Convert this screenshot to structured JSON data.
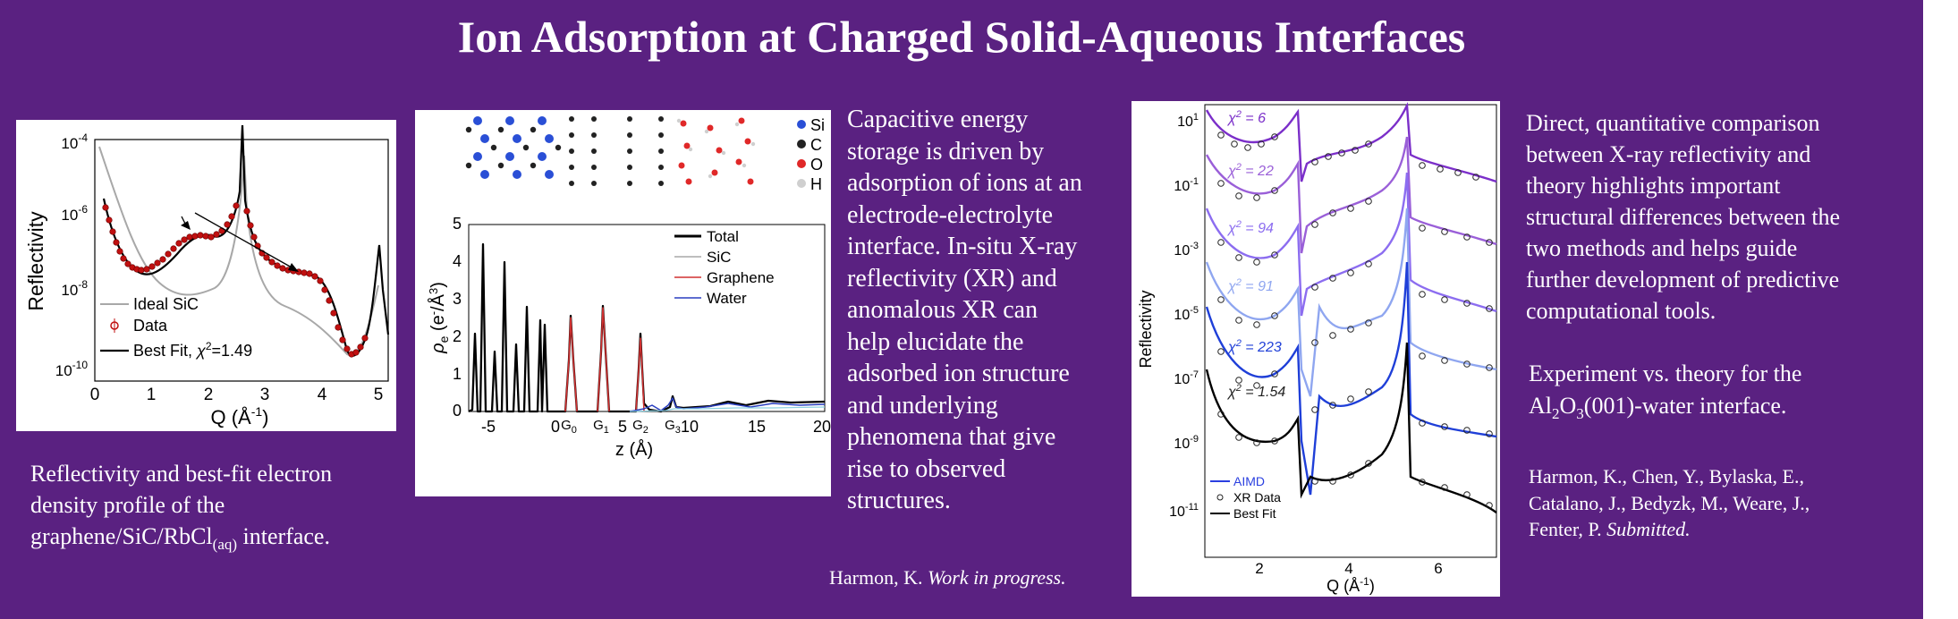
{
  "title": "Ion Adsorption at Charged Solid-Aqueous Interfaces",
  "panel1": {
    "ylabel": "Reflectivity",
    "xlabel": "Q (Å",
    "xlabel_sup": "-1",
    "xlabel_end": ")",
    "yticks": [
      {
        "base": "10",
        "exp": "-4"
      },
      {
        "base": "10",
        "exp": "-6"
      },
      {
        "base": "10",
        "exp": "-8"
      },
      {
        "base": "10",
        "exp": "-10"
      }
    ],
    "xticks": [
      "0",
      "1",
      "2",
      "3",
      "4",
      "5"
    ],
    "legend": {
      "ideal": "Ideal SiC",
      "data": "Data",
      "fit": "Best Fit, ",
      "chi": "χ",
      "chi_sup": "2",
      "chi_val": "=1.49"
    }
  },
  "caption1": {
    "line1": "Reflectivity and best-fit electron",
    "line2": "density profile of the",
    "line3": "graphene/SiC/RbCl",
    "sub": "(aq)",
    "line3_end": " interface."
  },
  "panel2": {
    "atoms": [
      "Si",
      "C",
      "O",
      "H"
    ],
    "ylabel": "ρ",
    "ylabel_sub": "e",
    "ylabel_rest": " (e",
    "ylabel_sup": "-",
    "ylabel_unit": "/Å",
    "ylabel_sup2": "3",
    "ylabel_end": ")",
    "yticks": [
      "0",
      "1",
      "2",
      "3",
      "4",
      "5"
    ],
    "xticks": [
      "-5",
      "0",
      "5",
      "10",
      "15",
      "20"
    ],
    "xlabel": "z (Å)",
    "legend": [
      "Total",
      "SiC",
      "Graphene",
      "Water"
    ],
    "g_labels": [
      {
        "g": "G",
        "s": "0"
      },
      {
        "g": "G",
        "s": "1"
      },
      {
        "g": "G",
        "s": "2"
      },
      {
        "g": "G",
        "s": "3"
      }
    ]
  },
  "text2": {
    "lines": [
      "Capacitive energy",
      "storage is driven by",
      "adsorption of ions at an",
      "electrode-electrolyte",
      "interface. In-situ X-ray",
      "reflectivity (XR) and",
      "anomalous XR can",
      "help elucidate the",
      "adsorbed ion structure",
      "and underlying",
      "phenomena that give",
      "rise to observed",
      "structures."
    ]
  },
  "ref2": {
    "author": "Harmon, K. ",
    "status": "Work in progress."
  },
  "panel3": {
    "ylabel": "Reflectivity",
    "xlabel": "Q (Å",
    "xlabel_sup": "-1",
    "xlabel_end": ")",
    "yticks": [
      {
        "base": "10",
        "exp": "1"
      },
      {
        "base": "10",
        "exp": "-1"
      },
      {
        "base": "10",
        "exp": "-3"
      },
      {
        "base": "10",
        "exp": "-5"
      },
      {
        "base": "10",
        "exp": "-7"
      },
      {
        "base": "10",
        "exp": "-9"
      },
      {
        "base": "10",
        "exp": "-11"
      }
    ],
    "xticks": [
      "2",
      "4",
      "6"
    ],
    "chi_labels": [
      {
        "chi": "χ",
        "sup": "2",
        "val": " = 6",
        "color": "#7b2fc9"
      },
      {
        "chi": "χ",
        "sup": "2",
        "val": " = 22",
        "color": "#9a5fd8"
      },
      {
        "chi": "χ",
        "sup": "2",
        "val": " = 94",
        "color": "#8c6df0"
      },
      {
        "chi": "χ",
        "sup": "2",
        "val": " = 91",
        "color": "#8fa6f0"
      },
      {
        "chi": "χ",
        "sup": "2",
        "val": " = 223",
        "color": "#1f3fd8"
      },
      {
        "chi": "χ",
        "sup": "2",
        "val": " = 1.54",
        "color": "#222222"
      }
    ],
    "legend": [
      "AIMD",
      "XR Data",
      "Best Fit"
    ]
  },
  "text3": {
    "lines": [
      "Direct, quantitative comparison",
      "between X-ray reflectivity and",
      "theory highlights important",
      "structural differences between the",
      "two methods and helps guide",
      "further development of predictive",
      "computational tools."
    ]
  },
  "caption3": {
    "line1": "Experiment vs. theory for the",
    "p1": "Al",
    "s1": "2",
    "p2": "O",
    "s2": "3",
    "p3": "(001)-water interface."
  },
  "ref3": {
    "line1": "Harmon, K., Chen, Y., Bylaska, E.,",
    "line2": "Catalano, J., Bedyzk, M., Weare, J.,",
    "line3a": "Fenter, P. ",
    "line3b": "Submitted."
  }
}
